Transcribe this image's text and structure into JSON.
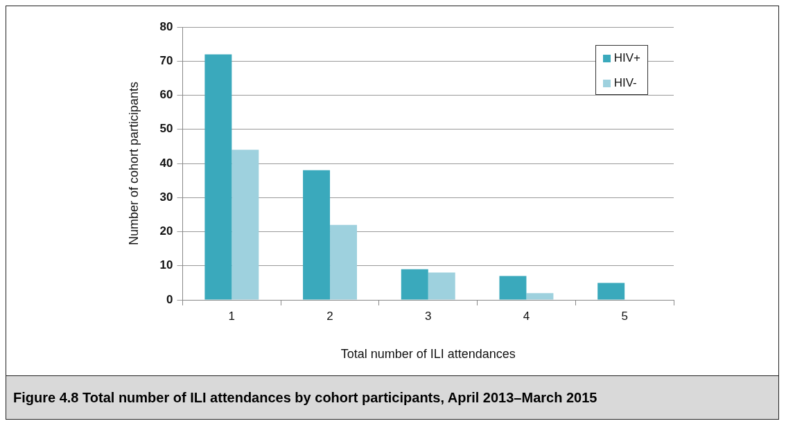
{
  "chart_data": {
    "type": "bar",
    "title": "Figure 4.8  Total number of ILI attendances by cohort participants, April 2013–March 2015",
    "xlabel": "Total number of ILI attendances",
    "ylabel": "Number of cohort participants",
    "categories": [
      "1",
      "2",
      "3",
      "4",
      "5"
    ],
    "series": [
      {
        "name": "HIV+",
        "color": "#3aa9bc",
        "values": [
          72,
          38,
          9,
          7,
          5
        ]
      },
      {
        "name": "HIV-",
        "color": "#9ed1de",
        "values": [
          44,
          22,
          8,
          2,
          0
        ]
      }
    ],
    "ylim": [
      0,
      80
    ],
    "yticks": [
      0,
      10,
      20,
      30,
      40,
      50,
      60,
      70,
      80
    ],
    "grid": "y",
    "legend": "top right"
  }
}
